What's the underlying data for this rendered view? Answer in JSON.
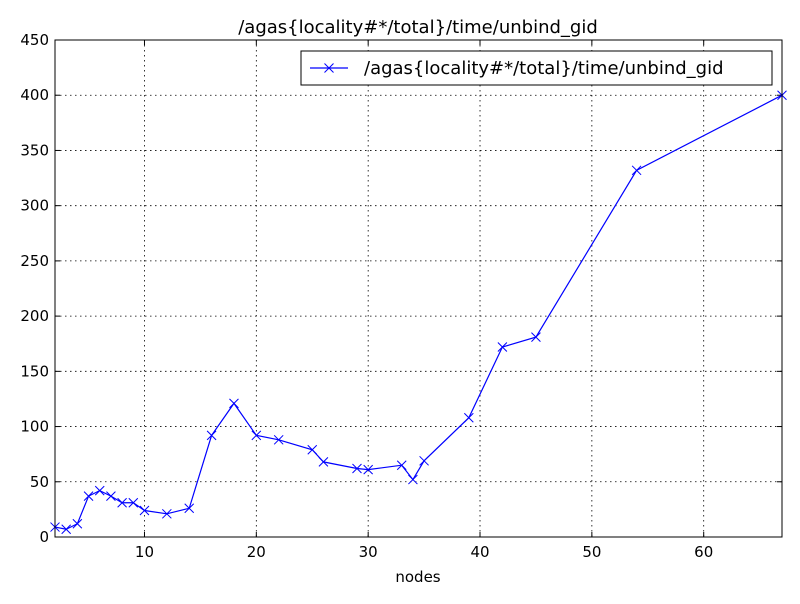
{
  "chart_data": {
    "type": "line",
    "title": "/agas{locality#*/total}/time/unbind_gid",
    "xlabel": "nodes",
    "ylabel": "",
    "xlim": [
      2,
      67
    ],
    "ylim": [
      0,
      450
    ],
    "xticks": [
      10,
      20,
      30,
      40,
      50,
      60
    ],
    "yticks": [
      0,
      50,
      100,
      150,
      200,
      250,
      300,
      350,
      400,
      450
    ],
    "grid": true,
    "legend_position": "top-right",
    "series": [
      {
        "name": "/agas{locality#*/total}/time/unbind_gid",
        "color": "#0000ff",
        "marker": "x",
        "x": [
          2,
          3,
          4,
          5,
          6,
          7,
          8,
          9,
          10,
          12,
          14,
          16,
          18,
          20,
          22,
          25,
          26,
          29,
          30,
          33,
          34,
          35,
          39,
          42,
          45,
          54,
          67
        ],
        "y": [
          9,
          7,
          12,
          37,
          42,
          37,
          31,
          31,
          24,
          21,
          26,
          92,
          121,
          92,
          88,
          79,
          68,
          62,
          61,
          65,
          52,
          69,
          108,
          172,
          181,
          332,
          400
        ]
      }
    ]
  }
}
